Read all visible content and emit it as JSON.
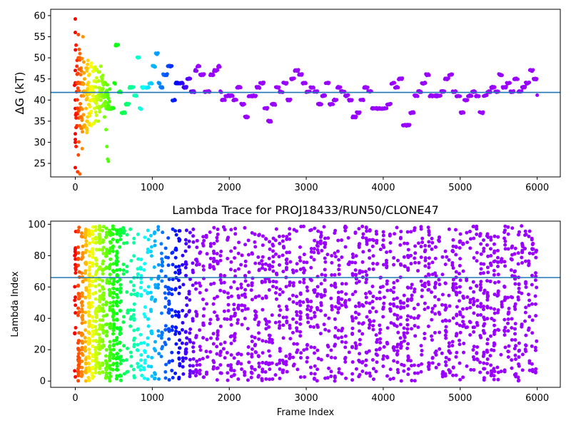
{
  "chart_data": [
    {
      "type": "scatter",
      "title": "",
      "xlabel": "",
      "ylabel": "ΔG (kT)",
      "xlim": [
        -320,
        6300
      ],
      "ylim": [
        21.8,
        61.5
      ],
      "xticks": [
        0,
        1000,
        2000,
        3000,
        4000,
        5000,
        6000
      ],
      "yticks": [
        25,
        30,
        35,
        40,
        45,
        50,
        55,
        60
      ],
      "grid": false,
      "legend": "none",
      "colormap": "rainbow (reversed: early frames red, late frames violet)",
      "hline": {
        "y": 41.8,
        "color": "#1f77b4"
      },
      "trace_x": [
        0,
        100,
        200,
        300,
        400,
        500,
        520,
        560,
        600,
        650,
        700,
        760,
        800,
        830,
        860,
        900,
        960,
        1000,
        1040,
        1080,
        1100,
        1140,
        1200,
        1260,
        1300,
        1350,
        1400,
        1450,
        1500,
        1550,
        1580,
        1620,
        1680,
        1700,
        1750,
        1800,
        1850,
        1880,
        1900,
        1950,
        2000,
        2050,
        2100,
        2150,
        2200,
        2250,
        2300,
        2350,
        2400,
        2450,
        2500,
        2550,
        2600,
        2650,
        2700,
        2750,
        2800,
        2850,
        2900,
        2950,
        3000,
        3050,
        3100,
        3150,
        3200,
        3250,
        3300,
        3350,
        3400,
        3450,
        3500,
        3550,
        3600,
        3650,
        3700,
        3750,
        3800,
        3850,
        3900,
        3950,
        4000,
        4050,
        4100,
        4150,
        4200,
        4250,
        4300,
        4350,
        4400,
        4450,
        4500,
        4550,
        4600,
        4650,
        4700,
        4750,
        4800,
        4850,
        4900,
        4950,
        5000,
        5050,
        5100,
        5150,
        5200,
        5250,
        5300,
        5350,
        5400,
        5450,
        5500,
        5550,
        5600,
        5650,
        5700,
        5750,
        5800,
        5850,
        5900,
        5950,
        6000
      ],
      "trace_y": [
        44,
        42,
        40,
        41,
        38,
        44,
        53,
        42,
        37,
        39,
        43,
        41,
        50,
        38,
        43,
        43,
        44,
        48,
        51,
        44,
        43,
        46,
        48,
        40,
        44,
        44,
        43,
        45,
        42,
        47,
        48,
        46,
        42,
        42,
        46,
        47,
        48,
        42,
        40,
        41,
        41,
        40,
        43,
        39,
        36,
        41,
        41,
        43,
        44,
        38,
        35,
        39,
        43,
        42,
        44,
        40,
        45,
        47,
        46,
        44,
        42,
        43,
        42,
        39,
        41,
        44,
        39,
        40,
        43,
        42,
        41,
        40,
        36,
        37,
        40,
        43,
        42,
        38,
        38,
        38,
        38,
        39,
        44,
        43,
        45,
        34,
        34,
        37,
        41,
        42,
        44,
        46,
        41,
        41,
        41,
        42,
        45,
        46,
        42,
        41,
        37,
        40,
        41,
        42,
        41,
        37,
        41,
        42,
        43,
        42,
        46,
        43,
        44,
        42,
        45,
        42,
        43,
        44,
        47,
        45,
        41
      ],
      "scatter_points": [
        [
          0,
          59.2
        ],
        [
          0,
          56
        ],
        [
          10,
          53
        ],
        [
          20,
          48
        ],
        [
          0,
          47
        ],
        [
          -10,
          43.5
        ],
        [
          0,
          40
        ],
        [
          0,
          38
        ],
        [
          10,
          33.5
        ],
        [
          0,
          32
        ],
        [
          0,
          30
        ],
        [
          10,
          29
        ],
        [
          0,
          24
        ],
        [
          30,
          23
        ],
        [
          40,
          55.5
        ],
        [
          50,
          52
        ],
        [
          60,
          51
        ],
        [
          60,
          49.5
        ],
        [
          70,
          46
        ],
        [
          50,
          44
        ],
        [
          80,
          41
        ],
        [
          40,
          27
        ],
        [
          60,
          22.5
        ],
        [
          90,
          28.5
        ],
        [
          100,
          55
        ],
        [
          110,
          49
        ],
        [
          120,
          45
        ],
        [
          130,
          42
        ],
        [
          140,
          38
        ],
        [
          150,
          35
        ],
        [
          160,
          36
        ],
        [
          180,
          34.5
        ],
        [
          200,
          37
        ],
        [
          250,
          38
        ],
        [
          300,
          35
        ],
        [
          330,
          48
        ],
        [
          360,
          44
        ],
        [
          380,
          36
        ],
        [
          400,
          33
        ],
        [
          410,
          29
        ],
        [
          420,
          26
        ],
        [
          430,
          25.5
        ]
      ]
    },
    {
      "type": "scatter",
      "title": "Lambda Trace for PROJ18433/RUN50/CLONE47",
      "xlabel": "Frame Index",
      "ylabel": "Lambda Index",
      "xlim": [
        -320,
        6300
      ],
      "ylim": [
        -4,
        102
      ],
      "xticks": [
        0,
        1000,
        2000,
        3000,
        4000,
        5000,
        6000
      ],
      "yticks": [
        0,
        20,
        40,
        60,
        80,
        100
      ],
      "grid": false,
      "legend": "none",
      "colormap": "rainbow (reversed: early frames red, late frames violet)",
      "hline": {
        "y": 66,
        "color": "#1f77b4"
      },
      "points_per_series": 2600,
      "value_range": [
        0,
        99
      ]
    }
  ]
}
